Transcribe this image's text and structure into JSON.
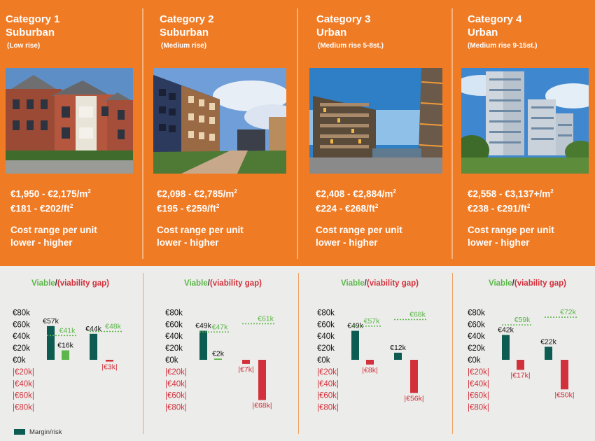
{
  "colors": {
    "orange": "#f07b25",
    "margin_dark": "#0d5c52",
    "viable_green": "#5cb64a",
    "gap_red": "#d2313c",
    "label_dark": "#333333"
  },
  "legend": {
    "viable": "Viable",
    "slash": "/",
    "gap": "(viability gap)",
    "margin_label": "Margin/risk"
  },
  "categories": [
    {
      "title": "Category 1",
      "type": "Suburban",
      "subtitle": "(Low rise)",
      "price_m2": "€1,950 - €2,175/m",
      "price_ft2": "€181 - €202/ft",
      "cost_line1": "Cost range per unit",
      "cost_line2": "lower - higher",
      "photo": "low-rise-suburban-building"
    },
    {
      "title": "Category 2",
      "type": "Suburban",
      "subtitle": "(Medium rise)",
      "price_m2": "€2,098 - €2,785/m",
      "price_ft2": "€195 - €259/ft",
      "cost_line1": "Cost range per unit",
      "cost_line2": "lower - higher",
      "photo": "medium-rise-suburban-building"
    },
    {
      "title": "Category 3",
      "type": "Urban",
      "subtitle": "(Medium rise 5-8st.)",
      "price_m2": "€2,408 - €2,884/m",
      "price_ft2": "€224 - €268/ft",
      "cost_line1": "Cost range per unit",
      "cost_line2": "lower - higher",
      "photo": "urban-waterfront-building"
    },
    {
      "title": "Category 4",
      "type": "Urban",
      "subtitle": "(Medium rise 9-15st.)",
      "price_m2": "€2,558 - €3,137+/m",
      "price_ft2": "€238 - €291/ft",
      "cost_line1": "Cost range per unit",
      "cost_line2": "lower - higher",
      "photo": "urban-tower-building"
    }
  ],
  "chart_data": {
    "type": "bar",
    "y_ticks": [
      "€80k",
      "€60k",
      "€40k",
      "€20k",
      "€0k",
      "|€20k|",
      "|€40k|",
      "|€60k|",
      "|€80k|"
    ],
    "ylim": [
      -80,
      80
    ],
    "unit": "€k",
    "panels": [
      {
        "margin_bars": [
          {
            "value": 57,
            "label": "€57k"
          },
          {
            "value": 44,
            "label": "€44k"
          }
        ],
        "result_bars": [
          {
            "value": 16,
            "label": "€16k"
          },
          {
            "value": -3,
            "label": "|€3k|"
          }
        ],
        "margin_lines": [
          {
            "value": 41,
            "label": "€41k"
          },
          {
            "value": 48,
            "label": "€48k"
          }
        ]
      },
      {
        "margin_bars": [
          {
            "value": 49,
            "label": "€49k"
          },
          {
            "value": -7,
            "label": "|€7k|"
          }
        ],
        "result_bars": [
          {
            "value": 2,
            "label": "€2k"
          },
          {
            "value": -68,
            "label": "|€68k|"
          }
        ],
        "margin_lines": [
          {
            "value": 47,
            "label": "€47k"
          },
          {
            "value": 61,
            "label": "€61k"
          }
        ]
      },
      {
        "margin_bars": [
          {
            "value": 49,
            "label": "€49k"
          },
          {
            "value": 12,
            "label": "€12k"
          }
        ],
        "result_bars": [
          {
            "value": -8,
            "label": "|€8k|"
          },
          {
            "value": -56,
            "label": "|€56k|"
          }
        ],
        "margin_lines": [
          {
            "value": 57,
            "label": "€57k"
          },
          {
            "value": 68,
            "label": "€68k"
          }
        ]
      },
      {
        "margin_bars": [
          {
            "value": 42,
            "label": "€42k"
          },
          {
            "value": 22,
            "label": "€22k"
          }
        ],
        "result_bars": [
          {
            "value": -17,
            "label": "|€17k|"
          },
          {
            "value": -50,
            "label": "|€50k|"
          }
        ],
        "margin_lines": [
          {
            "value": 59,
            "label": "€59k"
          },
          {
            "value": 72,
            "label": "€72k"
          }
        ]
      }
    ]
  }
}
